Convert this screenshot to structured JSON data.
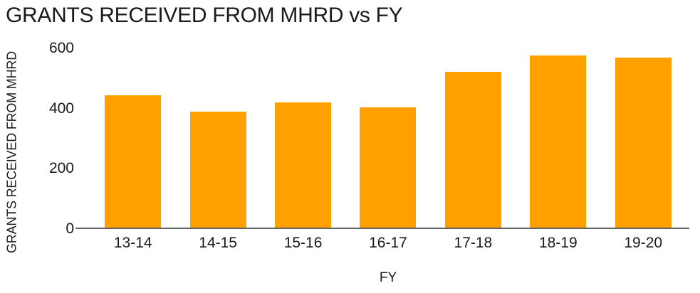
{
  "chart_data": {
    "type": "bar",
    "title": "GRANTS RECEIVED FROM MHRD vs FY",
    "xlabel": "FY",
    "ylabel": "GRANTS RECEIVED FROM MHRD",
    "categories": [
      "13-14",
      "14-15",
      "15-16",
      "16-17",
      "17-18",
      "18-19",
      "19-20"
    ],
    "values": [
      444,
      389,
      420,
      404,
      522,
      577,
      570
    ],
    "ylim": [
      0,
      600
    ],
    "yticks": [
      0,
      200,
      400,
      600
    ],
    "grid": false,
    "legend": false,
    "bar_color": "#FFA000",
    "axis_color": "#666666",
    "text_color": "#1A1A1A"
  }
}
